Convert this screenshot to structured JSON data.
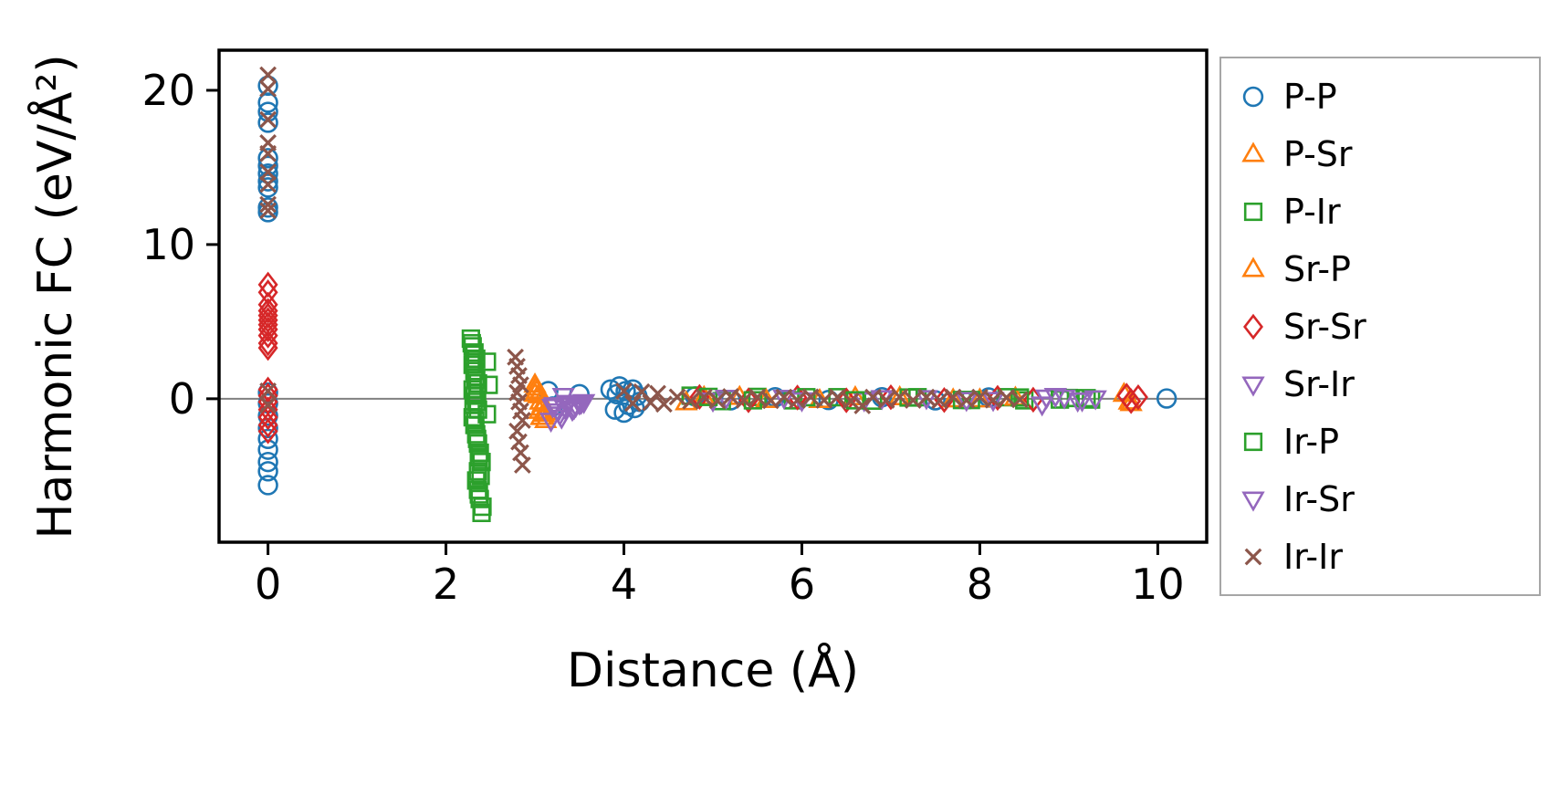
{
  "figure": {
    "background": "#ffffff"
  },
  "chart_data": {
    "type": "scatter",
    "title": "",
    "xlabel": "Distance (Å)",
    "ylabel": "Harmonic FC (eV/Å²)",
    "xlim": [
      -0.55,
      10.55
    ],
    "ylim": [
      -9.3,
      22.6
    ],
    "xticks": [
      0,
      2,
      4,
      6,
      8,
      10
    ],
    "yticks": [
      0,
      10,
      20
    ],
    "grid": false,
    "zero_line": {
      "y": 0,
      "color": "#808080"
    },
    "legend_position": "outside-right",
    "series": [
      {
        "name": "P-P",
        "marker": "circle",
        "color": "#1f77b4",
        "points": [
          [
            0,
            20.3
          ],
          [
            0,
            19.2
          ],
          [
            0,
            18.6
          ],
          [
            0,
            17.9
          ],
          [
            0,
            15.6
          ],
          [
            0,
            15.1
          ],
          [
            0,
            14.6
          ],
          [
            0,
            14.1
          ],
          [
            0,
            13.7
          ],
          [
            0,
            12.4
          ],
          [
            0,
            12.1
          ],
          [
            0,
            0.4
          ],
          [
            0,
            -0.3
          ],
          [
            0,
            -1.1
          ],
          [
            0,
            -1.9
          ],
          [
            0,
            -2.6
          ],
          [
            0,
            -3.3
          ],
          [
            0,
            -4.1
          ],
          [
            0,
            -4.7
          ],
          [
            0,
            -5.6
          ],
          [
            3.15,
            0.5
          ],
          [
            3.2,
            -0.5
          ],
          [
            3.5,
            0.3
          ],
          [
            3.85,
            0.6
          ],
          [
            3.9,
            -0.7
          ],
          [
            3.92,
            0.3
          ],
          [
            3.95,
            0.8
          ],
          [
            4.0,
            -0.9
          ],
          [
            4.02,
            0.5
          ],
          [
            4.05,
            -0.4
          ],
          [
            4.1,
            0.6
          ],
          [
            4.12,
            -0.6
          ],
          [
            4.15,
            0.2
          ],
          [
            4.18,
            -0.2
          ],
          [
            4.8,
            0.15
          ],
          [
            5.2,
            -0.1
          ],
          [
            5.7,
            0.1
          ],
          [
            6.3,
            -0.08
          ],
          [
            6.9,
            0.1
          ],
          [
            7.5,
            -0.1
          ],
          [
            8.1,
            0.08
          ],
          [
            10.1,
            0.02
          ]
        ]
      },
      {
        "name": "P-Sr",
        "marker": "triangle-up",
        "color": "#ff7f0e",
        "points": [
          [
            3.0,
            0.9
          ],
          [
            3.02,
            0.5
          ],
          [
            3.04,
            0.2
          ],
          [
            3.06,
            -0.2
          ],
          [
            3.08,
            -0.6
          ],
          [
            3.1,
            -1.0
          ],
          [
            3.12,
            -1.4
          ],
          [
            3.05,
            -0.8
          ],
          [
            3.0,
            0.3
          ],
          [
            4.7,
            -0.25
          ],
          [
            5.3,
            0.1
          ],
          [
            6.2,
            -0.1
          ],
          [
            7.1,
            0.08
          ],
          [
            8.0,
            -0.06
          ],
          [
            9.62,
            0.3
          ],
          [
            9.68,
            -0.2
          ]
        ]
      },
      {
        "name": "P-Ir",
        "marker": "square",
        "color": "#2ca02c",
        "points": [
          [
            2.28,
            3.9
          ],
          [
            2.3,
            3.4
          ],
          [
            2.32,
            3.0
          ],
          [
            2.34,
            2.6
          ],
          [
            2.3,
            2.2
          ],
          [
            2.32,
            1.8
          ],
          [
            2.34,
            1.4
          ],
          [
            2.36,
            1.0
          ],
          [
            2.3,
            0.6
          ],
          [
            2.32,
            0.2
          ],
          [
            2.34,
            -0.2
          ],
          [
            2.36,
            -0.7
          ],
          [
            2.3,
            -1.2
          ],
          [
            2.32,
            -1.7
          ],
          [
            2.34,
            -2.3
          ],
          [
            2.36,
            -2.9
          ],
          [
            2.38,
            -3.5
          ],
          [
            2.4,
            -4.1
          ],
          [
            2.36,
            -4.7
          ],
          [
            2.34,
            -5.3
          ],
          [
            2.36,
            -5.9
          ],
          [
            2.38,
            -6.5
          ],
          [
            2.4,
            -7.4
          ],
          [
            2.46,
            2.4
          ],
          [
            2.48,
            0.9
          ],
          [
            2.46,
            -1.0
          ],
          [
            4.75,
            0.2
          ],
          [
            5.1,
            -0.15
          ],
          [
            5.5,
            0.12
          ],
          [
            5.9,
            -0.1
          ],
          [
            6.4,
            0.1
          ],
          [
            6.8,
            -0.12
          ],
          [
            7.3,
            0.1
          ],
          [
            7.9,
            -0.08
          ],
          [
            8.3,
            0.1
          ],
          [
            8.5,
            -0.1
          ],
          [
            9.0,
            0.05
          ],
          [
            9.25,
            -0.05
          ]
        ]
      },
      {
        "name": "Sr-P",
        "marker": "triangle-up",
        "color": "#ff7f0e",
        "points": [
          [
            3.01,
            0.7
          ],
          [
            3.05,
            0.35
          ],
          [
            3.09,
            -0.35
          ],
          [
            3.13,
            -0.9
          ],
          [
            3.07,
            -1.2
          ],
          [
            4.9,
            0.1
          ],
          [
            5.6,
            -0.1
          ],
          [
            6.6,
            0.08
          ],
          [
            7.7,
            -0.06
          ],
          [
            8.4,
            0.05
          ],
          [
            9.7,
            -0.3
          ]
        ]
      },
      {
        "name": "Sr-Sr",
        "marker": "diamond",
        "color": "#d62728",
        "points": [
          [
            0,
            7.4
          ],
          [
            0,
            6.9
          ],
          [
            0,
            6.1
          ],
          [
            0,
            5.7
          ],
          [
            0,
            5.4
          ],
          [
            0,
            5.1
          ],
          [
            0,
            4.8
          ],
          [
            0,
            4.5
          ],
          [
            0,
            4.1
          ],
          [
            0,
            3.6
          ],
          [
            0,
            3.3
          ],
          [
            0,
            0.6
          ],
          [
            0,
            0.2
          ],
          [
            0,
            -0.2
          ],
          [
            0,
            -0.7
          ],
          [
            0,
            -1.2
          ],
          [
            0,
            -1.7
          ],
          [
            0,
            -2.1
          ],
          [
            4.85,
            0.12
          ],
          [
            5.4,
            -0.1
          ],
          [
            5.95,
            0.08
          ],
          [
            6.5,
            -0.1
          ],
          [
            7.0,
            0.1
          ],
          [
            7.6,
            -0.08
          ],
          [
            8.2,
            0.06
          ],
          [
            8.6,
            -0.06
          ],
          [
            9.65,
            0.2
          ],
          [
            9.7,
            -0.15
          ],
          [
            9.78,
            0.1
          ]
        ]
      },
      {
        "name": "Sr-Ir",
        "marker": "triangle-down",
        "color": "#9467bd",
        "points": [
          [
            3.18,
            -1.4
          ],
          [
            3.22,
            -0.4
          ],
          [
            3.26,
            -0.8
          ],
          [
            3.3,
            -1.2
          ],
          [
            3.34,
            -0.6
          ],
          [
            3.38,
            -0.25
          ],
          [
            3.42,
            -0.7
          ],
          [
            3.46,
            -0.45
          ],
          [
            3.5,
            -0.3
          ],
          [
            3.32,
            0.2
          ],
          [
            3.55,
            -0.2
          ],
          [
            5.0,
            -0.1
          ],
          [
            5.8,
            0.08
          ],
          [
            6.7,
            -0.08
          ],
          [
            7.4,
            0.06
          ],
          [
            8.15,
            -0.06
          ],
          [
            8.75,
            0.1
          ],
          [
            9.1,
            -0.1
          ]
        ]
      },
      {
        "name": "Ir-P",
        "marker": "square",
        "color": "#2ca02c",
        "points": [
          [
            2.29,
            3.6
          ],
          [
            2.31,
            2.4
          ],
          [
            2.33,
            1.2
          ],
          [
            2.35,
            0.4
          ],
          [
            2.31,
            -0.4
          ],
          [
            2.33,
            -1.4
          ],
          [
            2.35,
            -2.6
          ],
          [
            2.37,
            -3.8
          ],
          [
            2.39,
            -5.0
          ],
          [
            2.37,
            -6.2
          ],
          [
            2.41,
            -7.0
          ],
          [
            4.95,
            0.12
          ],
          [
            5.45,
            -0.1
          ],
          [
            6.05,
            0.1
          ],
          [
            6.6,
            -0.1
          ],
          [
            7.2,
            0.08
          ],
          [
            7.8,
            -0.08
          ],
          [
            8.45,
            0.08
          ],
          [
            8.9,
            -0.05
          ],
          [
            9.2,
            0.04
          ]
        ]
      },
      {
        "name": "Ir-Sr",
        "marker": "triangle-down",
        "color": "#9467bd",
        "points": [
          [
            3.2,
            -0.5
          ],
          [
            3.28,
            -1.0
          ],
          [
            3.36,
            -0.35
          ],
          [
            3.44,
            -0.6
          ],
          [
            3.52,
            -0.25
          ],
          [
            5.15,
            0.08
          ],
          [
            6.0,
            -0.08
          ],
          [
            6.9,
            0.06
          ],
          [
            7.85,
            -0.06
          ],
          [
            8.7,
            -0.35
          ],
          [
            8.85,
            0.2
          ],
          [
            8.95,
            0.1
          ],
          [
            9.15,
            -0.08
          ],
          [
            9.3,
            0.05
          ]
        ]
      },
      {
        "name": "Ir-Ir",
        "marker": "x",
        "color": "#8c564b",
        "points": [
          [
            0,
            21.0
          ],
          [
            0,
            20.1
          ],
          [
            0,
            18.1
          ],
          [
            0,
            16.6
          ],
          [
            0,
            15.9
          ],
          [
            0,
            14.7
          ],
          [
            0,
            13.9
          ],
          [
            0,
            12.6
          ],
          [
            0,
            12.2
          ],
          [
            0,
            0.5
          ],
          [
            0,
            -0.4
          ],
          [
            2.78,
            2.7
          ],
          [
            2.8,
            2.1
          ],
          [
            2.82,
            1.5
          ],
          [
            2.84,
            0.9
          ],
          [
            2.8,
            0.4
          ],
          [
            2.82,
            -0.2
          ],
          [
            2.84,
            -0.8
          ],
          [
            2.86,
            -1.4
          ],
          [
            2.8,
            -2.1
          ],
          [
            2.82,
            -2.8
          ],
          [
            2.84,
            -3.5
          ],
          [
            2.86,
            -4.3
          ],
          [
            4.0,
            0.5
          ],
          [
            4.1,
            -0.3
          ],
          [
            4.2,
            0.45
          ],
          [
            4.3,
            -0.25
          ],
          [
            4.38,
            0.35
          ],
          [
            4.45,
            -0.35
          ],
          [
            4.6,
            0.12
          ],
          [
            4.75,
            -0.15
          ],
          [
            4.9,
            0.1
          ],
          [
            5.05,
            -0.12
          ],
          [
            5.2,
            0.14
          ],
          [
            5.35,
            -0.1
          ],
          [
            5.5,
            0.1
          ],
          [
            5.65,
            -0.12
          ],
          [
            5.8,
            0.1
          ],
          [
            5.95,
            -0.1
          ],
          [
            6.1,
            0.12
          ],
          [
            6.25,
            -0.1
          ],
          [
            6.4,
            0.1
          ],
          [
            6.55,
            -0.15
          ],
          [
            6.68,
            -0.45
          ],
          [
            6.8,
            0.1
          ],
          [
            6.95,
            -0.1
          ],
          [
            7.1,
            0.12
          ],
          [
            7.25,
            -0.1
          ],
          [
            7.4,
            0.1
          ],
          [
            7.55,
            -0.12
          ],
          [
            7.7,
            0.1
          ],
          [
            7.85,
            -0.1
          ],
          [
            8.0,
            0.1
          ],
          [
            8.15,
            -0.08
          ],
          [
            8.3,
            0.08
          ],
          [
            8.45,
            -0.06
          ]
        ]
      }
    ]
  }
}
